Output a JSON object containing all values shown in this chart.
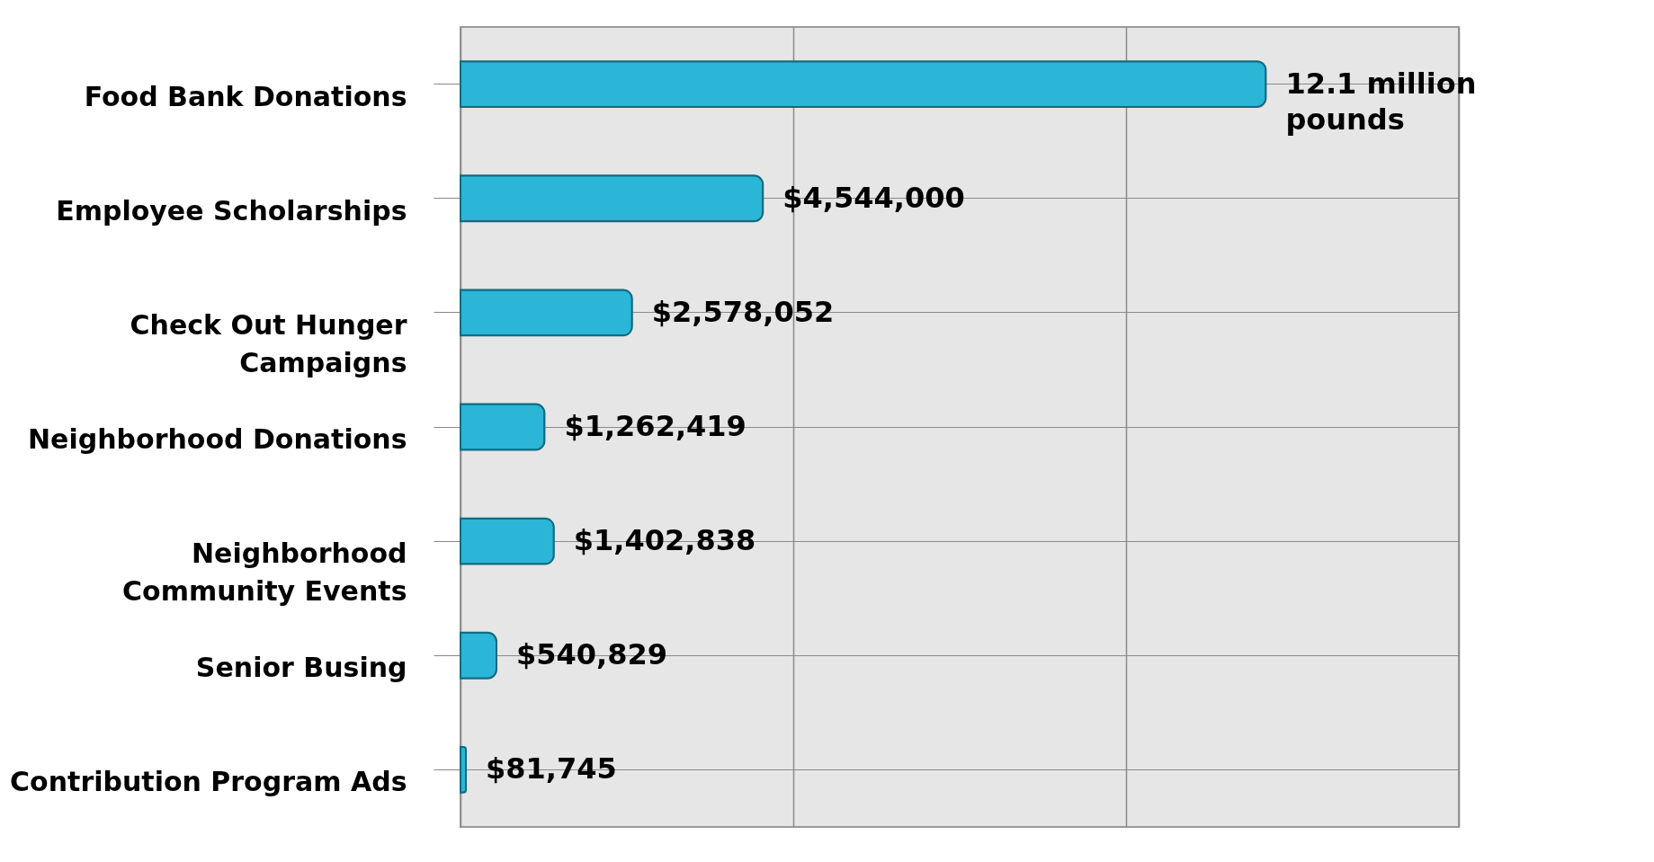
{
  "chart_data": {
    "type": "bar",
    "orientation": "horizontal",
    "categories": [
      "Food Bank Donations",
      "Employee Scholarships",
      "Check Out Hunger Campaigns",
      "Neighborhood Donations",
      "Neighborhood Community Events",
      "Senior Busing",
      "Contribution Program Ads"
    ],
    "values": [
      12100000,
      4544000,
      2578052,
      1262419,
      1402838,
      540829,
      81745
    ],
    "value_labels": [
      "12.1 million pounds",
      "$4,544,000",
      "$2,578,052",
      "$1,262,419",
      "$1,402,838",
      "$540,829",
      "$81,745"
    ],
    "color": "#2bb5d6",
    "grid": true,
    "tick_labels": "y",
    "xlim": [
      0,
      15000000
    ],
    "xticks": [
      {
        "value": 0,
        "label": null
      },
      {
        "value": 5000000,
        "label": null
      },
      {
        "value": 10000000,
        "label": null
      },
      {
        "value": 15000000,
        "label": null
      }
    ]
  }
}
